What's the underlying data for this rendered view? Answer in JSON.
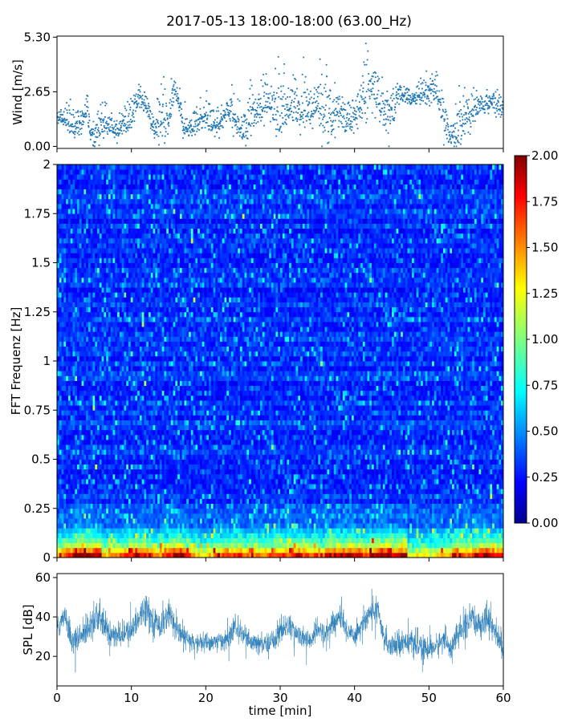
{
  "figure": {
    "title": "2017-05-13 18:00-18:00 (63.00_Hz)"
  },
  "chart_data": [
    {
      "type": "scatter",
      "panel": "wind",
      "ylabel": "Wind [m/s]",
      "xlim": [
        0,
        60
      ],
      "ylim": [
        -0.1,
        5.35
      ],
      "yticks": [
        "0.00",
        "2.65",
        "5.30"
      ],
      "ytick_values": [
        0.0,
        2.65,
        5.3
      ],
      "point_color": "#1f77b4",
      "wind_profile": {
        "t": [
          0,
          1,
          2,
          3,
          4,
          4.5,
          5,
          6,
          7,
          8,
          9,
          10,
          11,
          12,
          13,
          14,
          15,
          16,
          17,
          18,
          19,
          20,
          21,
          22,
          23,
          24,
          25,
          26,
          27,
          28,
          29,
          30,
          31,
          32,
          33,
          34,
          35,
          36,
          37,
          38,
          39,
          40,
          41,
          42,
          43,
          44,
          45,
          46,
          47,
          48,
          49,
          50,
          51,
          52,
          53,
          54,
          55,
          56,
          57,
          58,
          59,
          60
        ],
        "mean_mps": [
          1.5,
          1.3,
          1.0,
          0.9,
          1.6,
          0.6,
          0.3,
          1.1,
          1.0,
          0.8,
          1.2,
          1.3,
          2.3,
          2.0,
          0.7,
          1.3,
          1.4,
          2.8,
          1.0,
          0.8,
          1.3,
          1.5,
          1.0,
          1.2,
          1.8,
          1.4,
          0.5,
          1.5,
          1.6,
          2.0,
          1.9,
          1.6,
          1.8,
          2.0,
          1.7,
          1.6,
          1.9,
          1.5,
          1.4,
          1.8,
          1.0,
          1.6,
          2.0,
          3.2,
          2.4,
          1.3,
          1.4,
          2.5,
          2.4,
          2.3,
          2.5,
          2.5,
          2.8,
          1.2,
          0.6,
          0.7,
          1.4,
          1.6,
          1.9,
          2.1,
          2.0,
          1.9
        ],
        "peak_mps": [
          2.0,
          1.8,
          2.1,
          1.5,
          2.5,
          1.4,
          1.2,
          2.0,
          1.8,
          1.5,
          1.9,
          2.2,
          3.0,
          2.6,
          1.4,
          3.2,
          2.3,
          3.6,
          1.8,
          1.5,
          2.0,
          2.4,
          1.8,
          2.0,
          2.5,
          2.4,
          1.2,
          3.2,
          2.5,
          3.5,
          3.0,
          3.9,
          2.8,
          3.4,
          3.3,
          2.7,
          3.1,
          3.8,
          2.6,
          2.9,
          1.9,
          2.6,
          3.4,
          5.3,
          3.4,
          2.4,
          3.0,
          3.1,
          2.9,
          2.8,
          3.1,
          3.3,
          3.5,
          2.3,
          1.4,
          1.9,
          2.6,
          2.5,
          2.6,
          2.7,
          2.8,
          2.6
        ]
      }
    },
    {
      "type": "heatmap",
      "panel": "spectrogram",
      "ylabel": "FFT Frequenz [Hz]",
      "xlim": [
        0,
        60
      ],
      "ylim": [
        0,
        2
      ],
      "yticks": [
        "0",
        "0.25",
        "0.5",
        "0.75",
        "1",
        "1.25",
        "1.5",
        "1.75",
        "2"
      ],
      "ytick_values": [
        0,
        0.25,
        0.5,
        0.75,
        1.0,
        1.25,
        1.5,
        1.75,
        2.0
      ],
      "colormap": "jet",
      "clim": [
        0,
        2
      ],
      "colorbar_ticks": [
        "0.00",
        "0.25",
        "0.50",
        "0.75",
        "1.00",
        "1.25",
        "1.50",
        "1.75",
        "2.00"
      ],
      "colorbar_tick_values": [
        0,
        0.25,
        0.5,
        0.75,
        1.0,
        1.25,
        1.5,
        1.75,
        2.0
      ],
      "time_bins": 60,
      "freq_bins": 80,
      "low_freq_energy_by_minute": [
        1.3,
        1.6,
        1.9,
        2.0,
        1.9,
        2.0,
        1.2,
        1.5,
        1.4,
        1.6,
        1.7,
        1.8,
        1.5,
        1.4,
        1.6,
        1.8,
        1.9,
        1.5,
        1.2,
        1.1,
        1.2,
        1.4,
        1.6,
        1.5,
        1.7,
        1.3,
        1.3,
        1.4,
        1.5,
        1.6,
        1.5,
        1.6,
        1.7,
        1.6,
        1.5,
        1.4,
        1.8,
        1.7,
        1.6,
        1.9,
        1.7,
        1.6,
        1.8,
        1.9,
        2.0,
        1.8,
        1.9,
        1.0,
        1.1,
        1.0,
        1.0,
        1.2,
        1.3,
        1.7,
        1.6,
        1.5,
        1.8,
        1.9,
        1.7,
        1.6
      ]
    },
    {
      "type": "line",
      "panel": "spl",
      "ylabel": "SPL [dB]",
      "xlabel": "time [min]",
      "xlim": [
        0,
        60
      ],
      "ylim": [
        5,
        62
      ],
      "xticks": [
        "0",
        "10",
        "20",
        "30",
        "40",
        "50",
        "60"
      ],
      "xtick_values": [
        0,
        10,
        20,
        30,
        40,
        50,
        60
      ],
      "yticks": [
        "20",
        "40",
        "60"
      ],
      "ytick_values": [
        20,
        40,
        60
      ],
      "line_color": "#1f77b4",
      "spl_profile": {
        "t": [
          0,
          1,
          2,
          3,
          4,
          5,
          6,
          7,
          8,
          9,
          10,
          11,
          12,
          13,
          14,
          15,
          16,
          17,
          18,
          19,
          20,
          21,
          22,
          23,
          24,
          25,
          26,
          27,
          28,
          29,
          30,
          31,
          32,
          33,
          34,
          35,
          36,
          37,
          38,
          39,
          40,
          41,
          42,
          43,
          44,
          45,
          46,
          47,
          48,
          49,
          50,
          51,
          52,
          53,
          54,
          55,
          56,
          57,
          58,
          59,
          60
        ],
        "mean_db": [
          33,
          42,
          28,
          29,
          34,
          40,
          38,
          31,
          30,
          31,
          33,
          40,
          46,
          37,
          36,
          42,
          33,
          30,
          27,
          27,
          27,
          27,
          28,
          29,
          35,
          31,
          27,
          26,
          26,
          28,
          33,
          36,
          32,
          29,
          28,
          33,
          31,
          36,
          40,
          33,
          31,
          36,
          42,
          44,
          28,
          26,
          27,
          28,
          26,
          24,
          24,
          25,
          29,
          24,
          32,
          36,
          38,
          37,
          40,
          31,
          25
        ],
        "spread_db": [
          6,
          7,
          7,
          6,
          8,
          10,
          8,
          7,
          6,
          6,
          7,
          7,
          8,
          7,
          7,
          8,
          6,
          6,
          5,
          5,
          5,
          5,
          5,
          6,
          6,
          6,
          5,
          5,
          5,
          6,
          7,
          6,
          6,
          5,
          5,
          6,
          6,
          7,
          7,
          6,
          6,
          7,
          7,
          7,
          6,
          6,
          6,
          6,
          6,
          6,
          6,
          6,
          6,
          6,
          7,
          8,
          8,
          8,
          8,
          7,
          6
        ]
      }
    }
  ]
}
